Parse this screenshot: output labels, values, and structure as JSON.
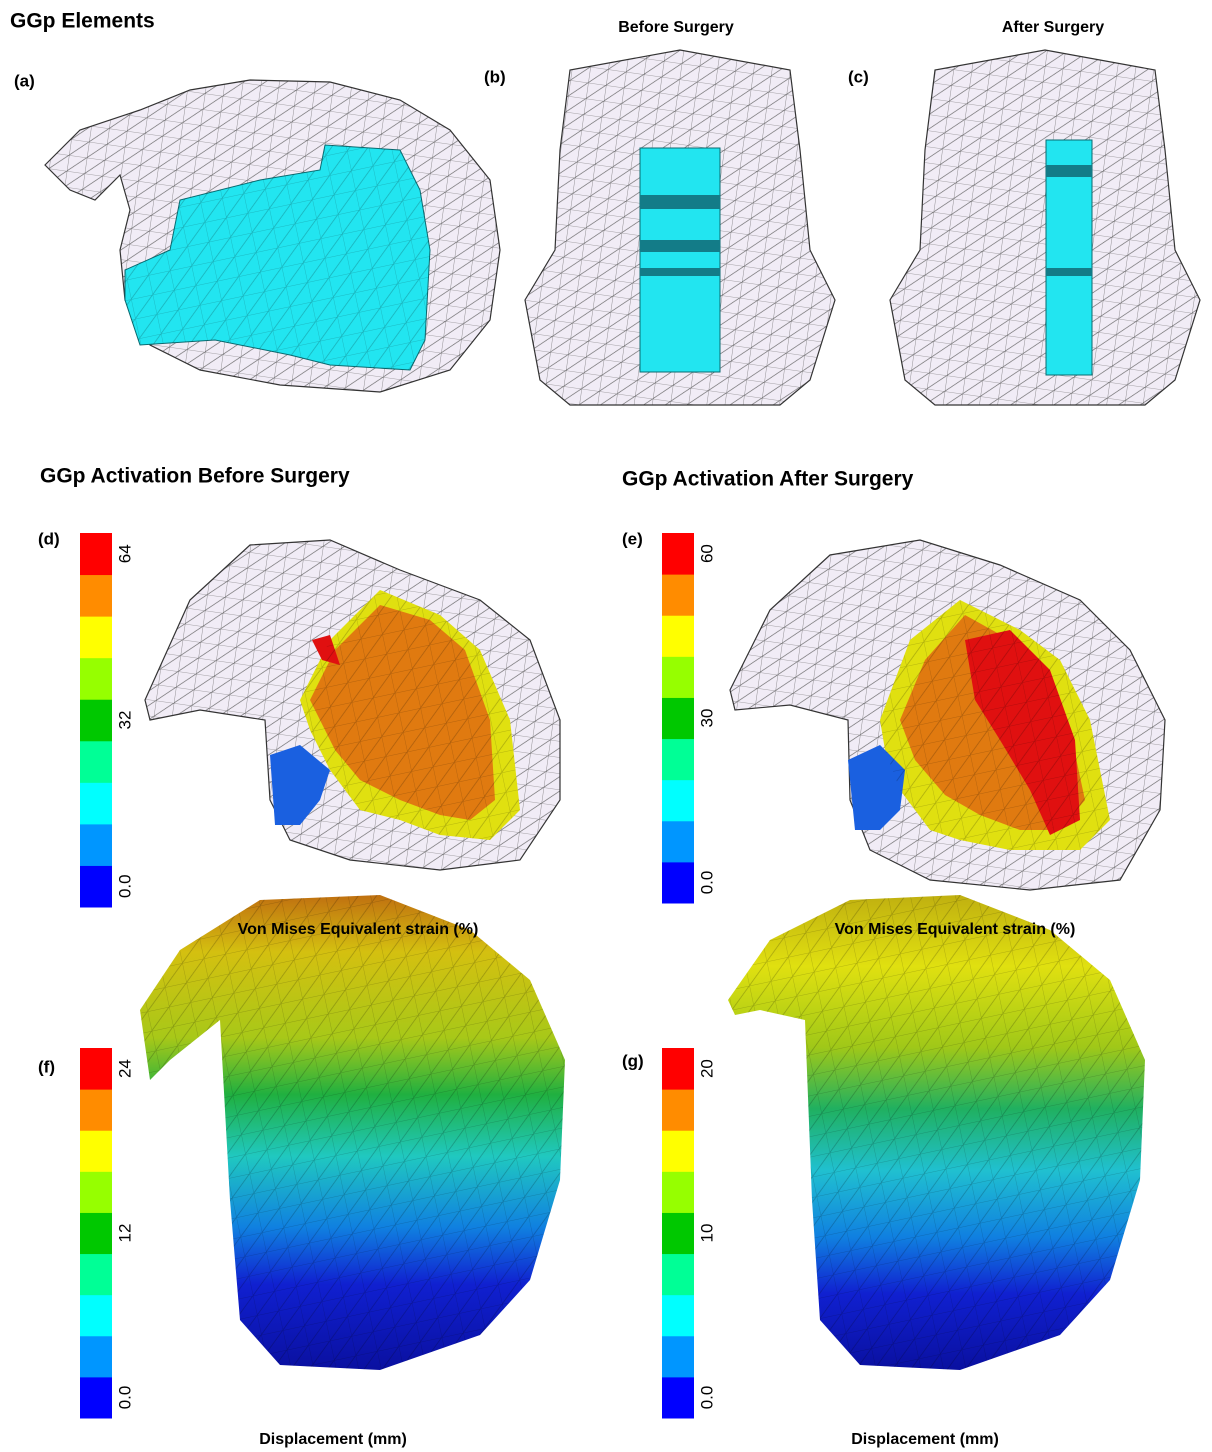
{
  "header": {
    "title": "GGp Elements",
    "before": "Before Surgery",
    "after": "After Surgery"
  },
  "sections": [
    "GGp Activation Before Surgery",
    "GGp Activation After Surgery"
  ],
  "panels": [
    {
      "label": "(a)"
    },
    {
      "label": "(b)"
    },
    {
      "label": "(c)"
    },
    {
      "label": "(d)",
      "colorbar": {
        "ticks": [
          "0.0",
          "32",
          "64"
        ]
      },
      "caption": "Von Mises Equivalent strain (%)"
    },
    {
      "label": "(e)",
      "colorbar": {
        "ticks": [
          "0.0",
          "30",
          "60"
        ]
      },
      "caption": "Von Mises Equivalent strain (%)"
    },
    {
      "label": "(f)",
      "colorbar": {
        "ticks": [
          "0.0",
          "12",
          "24"
        ]
      },
      "caption": "Displacement (mm)"
    },
    {
      "label": "(g)",
      "colorbar": {
        "ticks": [
          "0.0",
          "10",
          "20"
        ]
      },
      "caption": "Displacement (mm)"
    }
  ]
}
